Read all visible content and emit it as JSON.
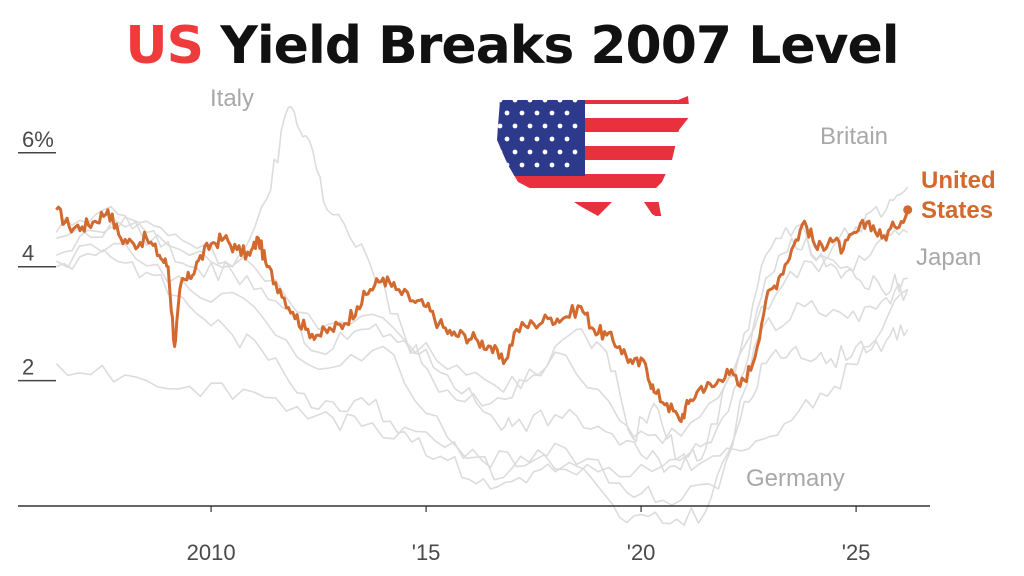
{
  "header": {
    "title_highlight": "US",
    "title_rest": "Yield Breaks 2007 Level"
  },
  "colors": {
    "highlight": "#ee3b3b",
    "us_line": "#d2692f",
    "others": "#dcdcdc",
    "label_gray": "#a8a8a8"
  },
  "flag": {
    "icon": "us-map-flag-icon"
  },
  "chart_data": {
    "type": "line",
    "title": "US Yield Breaks 2007 Level",
    "xlabel": "",
    "ylabel": "",
    "xlim": [
      2006.3,
      2026.3
    ],
    "ylim": [
      -0.2,
      6.4
    ],
    "yticks": [
      {
        "v": 6,
        "label": "6%"
      },
      {
        "v": 4,
        "label": "4"
      },
      {
        "v": 2,
        "label": "2"
      }
    ],
    "xticks": [
      {
        "v": 2010,
        "label": "2010"
      },
      {
        "v": 2015,
        "label": "'15"
      },
      {
        "v": 2020,
        "label": "'20"
      },
      {
        "v": 2025,
        "label": "'25"
      }
    ],
    "grid": false,
    "series": [
      {
        "name": "United States",
        "highlight": true,
        "x": [
          2006.4,
          2006.7,
          2007.0,
          2007.3,
          2007.6,
          2007.9,
          2008.2,
          2008.5,
          2008.8,
          2009.0,
          2009.15,
          2009.3,
          2009.5,
          2009.7,
          2010.0,
          2010.3,
          2010.6,
          2010.9,
          2011.1,
          2011.3,
          2011.6,
          2011.9,
          2012.2,
          2012.5,
          2012.8,
          2013.1,
          2013.4,
          2013.7,
          2014.0,
          2014.3,
          2014.7,
          2015.0,
          2015.3,
          2015.6,
          2015.9,
          2016.2,
          2016.5,
          2016.8,
          2017.1,
          2017.5,
          2017.9,
          2018.2,
          2018.6,
          2018.9,
          2019.2,
          2019.5,
          2019.8,
          2020.1,
          2020.3,
          2020.6,
          2020.9,
          2021.1,
          2021.4,
          2021.7,
          2022.0,
          2022.3,
          2022.6,
          2022.9,
          2023.2,
          2023.5,
          2023.8,
          2024.1,
          2024.4,
          2024.7,
          2025.0,
          2025.3,
          2025.6,
          2025.9,
          2026.2
        ],
        "y": [
          5.0,
          4.7,
          4.7,
          4.8,
          5.0,
          4.5,
          4.4,
          4.5,
          4.2,
          4.0,
          2.6,
          3.7,
          3.8,
          4.1,
          4.4,
          4.5,
          4.3,
          4.2,
          4.5,
          4.0,
          3.6,
          3.2,
          2.9,
          2.8,
          2.9,
          3.0,
          3.3,
          3.6,
          3.8,
          3.6,
          3.4,
          3.3,
          3.0,
          2.8,
          2.8,
          2.7,
          2.6,
          2.3,
          2.9,
          3.0,
          3.1,
          3.1,
          3.3,
          2.9,
          2.8,
          2.6,
          2.3,
          2.3,
          1.8,
          1.6,
          1.3,
          1.6,
          1.9,
          1.9,
          2.2,
          1.9,
          2.3,
          3.4,
          3.8,
          4.3,
          4.8,
          4.3,
          4.5,
          4.3,
          4.6,
          4.8,
          4.5,
          4.7,
          5.0
        ]
      },
      {
        "name": "Britain",
        "highlight": false,
        "x": [
          2006.4,
          2007.5,
          2008.5,
          2009.5,
          2010.5,
          2011.5,
          2012.5,
          2013.5,
          2014.5,
          2015.5,
          2016.5,
          2017.0,
          2018.0,
          2019.0,
          2020.0,
          2020.8,
          2021.5,
          2022.3,
          2022.9,
          2023.5,
          2024.2,
          2025.0,
          2025.7,
          2026.2
        ],
        "y": [
          4.6,
          5.0,
          4.6,
          4.0,
          3.9,
          3.4,
          2.5,
          2.9,
          2.7,
          2.1,
          1.4,
          1.2,
          1.4,
          1.2,
          0.7,
          0.5,
          0.9,
          2.0,
          3.8,
          4.5,
          4.2,
          4.7,
          5.0,
          5.4
        ]
      },
      {
        "name": "Italy",
        "highlight": false,
        "x": [
          2006.4,
          2007.5,
          2008.5,
          2009.5,
          2010.5,
          2011.3,
          2011.8,
          2012.2,
          2012.7,
          2013.5,
          2014.5,
          2015.3,
          2016.5,
          2017.5,
          2018.5,
          2019.2,
          2019.8,
          2020.3,
          2020.9,
          2021.5,
          2022.3,
          2022.9,
          2023.6,
          2024.3,
          2025.0,
          2025.6,
          2026.2
        ],
        "y": [
          4.2,
          4.6,
          4.8,
          4.4,
          4.0,
          5.2,
          6.8,
          6.3,
          5.0,
          4.4,
          2.8,
          1.8,
          1.6,
          2.1,
          2.9,
          2.5,
          1.0,
          1.6,
          0.6,
          0.8,
          2.5,
          4.2,
          4.7,
          4.0,
          3.8,
          3.6,
          3.8
        ]
      },
      {
        "name": "Japan",
        "highlight": false,
        "x": [
          2006.4,
          2008.0,
          2009.5,
          2011.0,
          2012.5,
          2013.5,
          2015.0,
          2016.3,
          2017.5,
          2019.0,
          2020.5,
          2021.5,
          2022.5,
          2023.5,
          2024.5,
          2025.3,
          2026.2
        ],
        "y": [
          2.3,
          2.1,
          1.9,
          1.8,
          1.4,
          1.2,
          1.1,
          0.6,
          0.6,
          0.4,
          0.5,
          0.6,
          0.8,
          1.3,
          1.9,
          2.6,
          3.6
        ]
      },
      {
        "name": "Germany",
        "highlight": false,
        "x": [
          2006.4,
          2007.5,
          2008.5,
          2009.5,
          2010.5,
          2011.5,
          2012.5,
          2013.5,
          2014.5,
          2015.5,
          2016.5,
          2017.5,
          2018.5,
          2019.5,
          2020.5,
          2021.5,
          2022.3,
          2022.9,
          2023.6,
          2024.3,
          2025.0,
          2025.7,
          2026.2
        ],
        "y": [
          4.0,
          4.3,
          3.9,
          3.3,
          2.8,
          2.4,
          1.5,
          1.7,
          1.1,
          0.6,
          0.1,
          0.4,
          0.5,
          -0.4,
          -0.5,
          -0.3,
          1.3,
          2.3,
          2.6,
          2.3,
          2.6,
          2.7,
          2.9
        ]
      },
      {
        "name": "",
        "highlight": false,
        "x": [
          2006.4,
          2008.0,
          2009.5,
          2011.0,
          2012.5,
          2014.0,
          2015.5,
          2016.8,
          2018.0,
          2019.5,
          2020.5,
          2021.8,
          2022.8,
          2023.8,
          2024.8,
          2025.6,
          2026.2
        ],
        "y": [
          4.1,
          4.4,
          3.6,
          3.3,
          2.2,
          2.6,
          1.0,
          0.3,
          0.9,
          0.2,
          -0.1,
          0.1,
          2.9,
          3.3,
          3.1,
          3.4,
          3.6
        ]
      },
      {
        "name": "",
        "highlight": false,
        "x": [
          2006.4,
          2008.0,
          2009.5,
          2011.0,
          2012.5,
          2014.0,
          2015.5,
          2016.8,
          2018.0,
          2019.5,
          2020.5,
          2021.8,
          2022.8,
          2023.8,
          2024.8,
          2025.6,
          2026.2
        ],
        "y": [
          4.5,
          4.7,
          4.2,
          4.0,
          2.9,
          3.1,
          2.2,
          1.8,
          2.5,
          1.3,
          0.9,
          1.7,
          3.3,
          4.1,
          4.0,
          4.5,
          4.6
        ]
      }
    ],
    "annotations": [
      {
        "text": "Italy",
        "series": "Italy"
      },
      {
        "text": "Britain",
        "series": "Britain"
      },
      {
        "text": "Japan",
        "series": "Japan"
      },
      {
        "text": "Germany",
        "series": "Germany"
      },
      {
        "text": "United",
        "series": "United States"
      },
      {
        "text": "States",
        "series": "United States"
      }
    ]
  }
}
